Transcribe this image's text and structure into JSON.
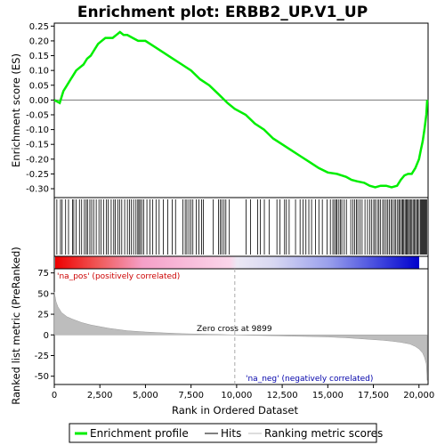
{
  "chart_data": {
    "type": "line",
    "title": "Enrichment plot: ERBB2_UP.V1_UP",
    "es_panel": {
      "ylabel": "Enrichment score (ES)",
      "ylim": [
        -0.33,
        0.26
      ],
      "yticks": [
        "0.25",
        "0.20",
        "0.15",
        "0.10",
        "0.05",
        "0.00",
        "-0.05",
        "-0.10",
        "-0.15",
        "-0.20",
        "-0.25",
        "-0.30"
      ],
      "ytick_values": [
        0.25,
        0.2,
        0.15,
        0.1,
        0.05,
        0.0,
        -0.05,
        -0.1,
        -0.15,
        -0.2,
        -0.25,
        -0.3
      ],
      "series": [
        {
          "name": "Enrichment profile",
          "color": "#00ee00",
          "x": [
            0,
            300,
            500,
            700,
            900,
            1000,
            1200,
            1400,
            1600,
            1800,
            2000,
            2200,
            2400,
            2600,
            2800,
            3000,
            3200,
            3400,
            3600,
            3800,
            4000,
            4300,
            4600,
            5000,
            5500,
            6000,
            6500,
            7000,
            7500,
            8000,
            8500,
            9000,
            9500,
            9899,
            10500,
            11000,
            11500,
            12000,
            12500,
            13000,
            13500,
            14000,
            14500,
            15000,
            15500,
            16000,
            16300,
            16600,
            17000,
            17300,
            17600,
            17900,
            18200,
            18500,
            18800,
            19000,
            19200,
            19400,
            19600,
            19800,
            20000,
            20100,
            20200,
            20300,
            20400,
            20450
          ],
          "y": [
            0.0,
            -0.01,
            0.03,
            0.05,
            0.07,
            0.08,
            0.1,
            0.11,
            0.12,
            0.14,
            0.15,
            0.17,
            0.19,
            0.2,
            0.21,
            0.21,
            0.21,
            0.22,
            0.23,
            0.22,
            0.22,
            0.21,
            0.2,
            0.2,
            0.18,
            0.16,
            0.14,
            0.12,
            0.1,
            0.07,
            0.05,
            0.02,
            -0.01,
            -0.03,
            -0.05,
            -0.08,
            -0.1,
            -0.13,
            -0.15,
            -0.17,
            -0.19,
            -0.21,
            -0.23,
            -0.245,
            -0.25,
            -0.26,
            -0.27,
            -0.275,
            -0.28,
            -0.29,
            -0.295,
            -0.29,
            -0.29,
            -0.295,
            -0.29,
            -0.27,
            -0.255,
            -0.25,
            -0.25,
            -0.23,
            -0.2,
            -0.17,
            -0.14,
            -0.1,
            -0.05,
            0.0
          ]
        }
      ]
    },
    "hits": [
      140,
      340,
      430,
      620,
      780,
      1000,
      1070,
      1200,
      1380,
      1500,
      1650,
      1750,
      1820,
      1950,
      2050,
      2160,
      2300,
      2450,
      2560,
      2700,
      2850,
      2950,
      3120,
      3260,
      3340,
      3480,
      3580,
      3700,
      3860,
      4010,
      4120,
      4230,
      4350,
      4480,
      4580,
      4640,
      4720,
      4800,
      4910,
      5080,
      5240,
      5400,
      5580,
      5750,
      5980,
      6220,
      6470,
      6650,
      7050,
      7180,
      7270,
      7380,
      7490,
      7600,
      7780,
      7930,
      8080,
      8170,
      8720,
      9000,
      9110,
      9190,
      9310,
      9410,
      9600,
      10520,
      10760,
      11150,
      11300,
      11520,
      11780,
      12210,
      12380,
      12630,
      12730,
      12880,
      13230,
      13480,
      13640,
      13800,
      13960,
      14110,
      14320,
      14510,
      14700,
      14960,
      15140,
      15280,
      15370,
      15460,
      15510,
      15610,
      15700,
      15770,
      15900,
      16020,
      16260,
      16370,
      16470,
      16570,
      16650,
      16770,
      16880,
      17040,
      17180,
      17310,
      17410,
      17520,
      17600,
      17710,
      17800,
      17880,
      18010,
      18100,
      18200,
      18290,
      18380,
      18470,
      18550,
      18650,
      18730,
      18830,
      18900,
      18970,
      19050,
      19110,
      19170,
      19240,
      19300,
      19360,
      19420,
      19480,
      19540,
      19610,
      19680,
      19750,
      19810,
      19880,
      19940,
      20010,
      20080,
      20130,
      20180,
      20230,
      20280,
      20330,
      20380,
      20420
    ],
    "colorbar": {
      "labels": [
        "'na_pos' (positively correlated)",
        "'na_neg' (negatively correlated)"
      ],
      "pos_color": "#cc0000",
      "neg_color": "#0000cc"
    },
    "metric_panel": {
      "ylabel": "Ranked list metric (PreRanked)",
      "xlabel": "Rank in Ordered Dataset",
      "ylim": [
        -60,
        80
      ],
      "yticks": [
        "75",
        "50",
        "25",
        "0",
        "-25",
        "-50"
      ],
      "ytick_values": [
        75,
        50,
        25,
        0,
        -25,
        -50
      ],
      "xlim": [
        0,
        20500
      ],
      "xticks": [
        "0",
        "2,500",
        "5,000",
        "7,500",
        "10,000",
        "12,500",
        "15,000",
        "17,500",
        "20,000"
      ],
      "xtick_values": [
        0,
        2500,
        5000,
        7500,
        10000,
        12500,
        15000,
        17500,
        20000
      ],
      "zero_cross_label": "Zero cross at 9899",
      "zero_cross": 9899,
      "metric_x": [
        0,
        50,
        100,
        200,
        400,
        700,
        1000,
        1500,
        2000,
        3000,
        4000,
        5000,
        6000,
        7000,
        8000,
        9000,
        9899,
        11000,
        12000,
        13000,
        14000,
        15000,
        16000,
        17000,
        18000,
        18500,
        19000,
        19500,
        19800,
        20000,
        20200,
        20300,
        20400,
        20450
      ],
      "metric_y": [
        52,
        46,
        40,
        34,
        27,
        22,
        19,
        15,
        12,
        8,
        5,
        3.5,
        2.5,
        1.5,
        1,
        0.5,
        0,
        -0.5,
        -1,
        -1.5,
        -2,
        -2.5,
        -3.5,
        -5,
        -6.5,
        -7.5,
        -9,
        -11,
        -14,
        -17,
        -22,
        -27,
        -35,
        -55
      ]
    },
    "legend": [
      "Enrichment profile",
      "Hits",
      "Ranking metric scores"
    ]
  }
}
